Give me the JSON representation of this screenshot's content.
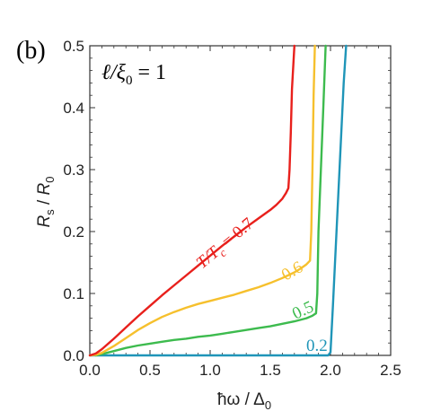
{
  "panel_label": "(b)",
  "annotation": {
    "lhs": "ℓ/ξ",
    "sub": "0",
    "rhs": " = 1"
  },
  "chart_data": {
    "type": "line",
    "xlabel": "ħω / Δ",
    "xlabel_sub": "0",
    "ylabel": "R",
    "ylabel_parts": {
      "r": "R",
      "s": "s",
      "slash": " / ",
      "r0": "R",
      "zero": "0"
    },
    "xlim": [
      0.0,
      2.5
    ],
    "ylim": [
      0.0,
      0.5
    ],
    "x_ticks": [
      "0.0",
      "0.5",
      "1.0",
      "1.5",
      "2.0",
      "2.5"
    ],
    "x_tick_values": [
      0.0,
      0.5,
      1.0,
      1.5,
      2.0,
      2.5
    ],
    "y_ticks": [
      "0.0",
      "0.1",
      "0.2",
      "0.3",
      "0.4",
      "0.5"
    ],
    "y_tick_values": [
      0.0,
      0.1,
      0.2,
      0.3,
      0.4,
      0.5
    ],
    "grid": false,
    "series": [
      {
        "label": "T/T",
        "label_sub": "c",
        "label_value": " = 0.7",
        "color": "#e8201c",
        "x": [
          0.0,
          0.05,
          0.1,
          0.2,
          0.3,
          0.4,
          0.5,
          0.6,
          0.7,
          0.8,
          0.9,
          1.0,
          1.1,
          1.2,
          1.3,
          1.4,
          1.5,
          1.55,
          1.6,
          1.63,
          1.65,
          1.66,
          1.67,
          1.68,
          1.7
        ],
        "y": [
          0.0,
          0.003,
          0.01,
          0.027,
          0.045,
          0.063,
          0.08,
          0.097,
          0.113,
          0.129,
          0.145,
          0.161,
          0.177,
          0.192,
          0.207,
          0.221,
          0.235,
          0.243,
          0.253,
          0.262,
          0.27,
          0.3,
          0.36,
          0.43,
          0.5
        ]
      },
      {
        "label": "0.6",
        "color": "#f6c02d",
        "x": [
          0.0,
          0.05,
          0.1,
          0.2,
          0.3,
          0.4,
          0.5,
          0.6,
          0.7,
          0.8,
          0.9,
          1.0,
          1.1,
          1.2,
          1.3,
          1.4,
          1.5,
          1.6,
          1.7,
          1.75,
          1.8,
          1.83,
          1.84,
          1.85,
          1.86,
          1.87
        ],
        "y": [
          0.0,
          0.001,
          0.004,
          0.015,
          0.028,
          0.041,
          0.052,
          0.062,
          0.07,
          0.077,
          0.083,
          0.088,
          0.093,
          0.098,
          0.104,
          0.11,
          0.117,
          0.125,
          0.134,
          0.14,
          0.147,
          0.153,
          0.2,
          0.3,
          0.42,
          0.5
        ]
      },
      {
        "label": "0.5",
        "color": "#3dbb4e",
        "x": [
          0.05,
          0.1,
          0.2,
          0.3,
          0.4,
          0.5,
          0.6,
          0.7,
          0.8,
          0.9,
          1.0,
          1.1,
          1.2,
          1.3,
          1.4,
          1.5,
          1.6,
          1.7,
          1.8,
          1.85,
          1.88,
          1.89,
          1.9,
          1.92,
          1.94,
          1.96
        ],
        "y": [
          0.0,
          0.002,
          0.007,
          0.012,
          0.016,
          0.019,
          0.022,
          0.025,
          0.027,
          0.03,
          0.032,
          0.035,
          0.038,
          0.041,
          0.044,
          0.047,
          0.051,
          0.055,
          0.06,
          0.064,
          0.068,
          0.1,
          0.2,
          0.3,
          0.4,
          0.5
        ]
      },
      {
        "label": "0.2",
        "color": "#1f95b8",
        "x": [
          0.0,
          0.5,
          1.0,
          1.5,
          1.98,
          2.0,
          2.02,
          2.05,
          2.08,
          2.11,
          2.13
        ],
        "y": [
          0.0,
          0.0,
          0.0,
          0.0,
          0.0,
          0.005,
          0.08,
          0.2,
          0.32,
          0.44,
          0.5
        ]
      }
    ]
  }
}
